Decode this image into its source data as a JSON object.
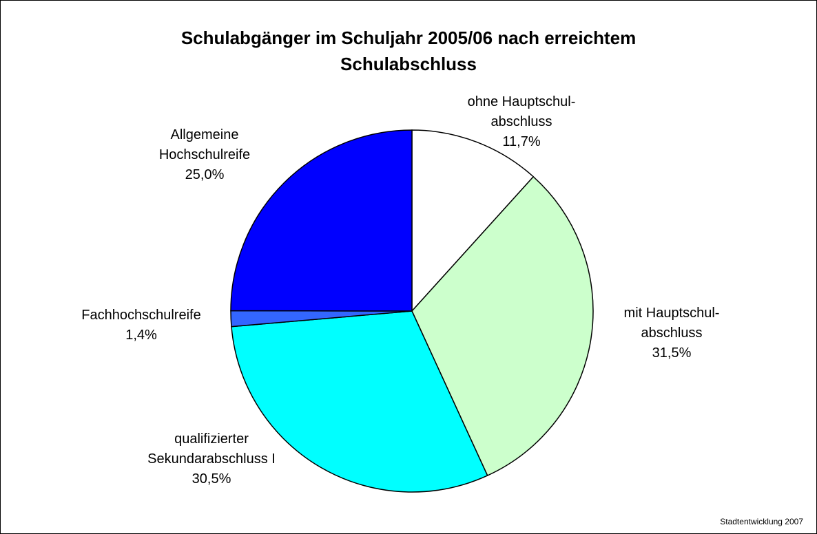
{
  "chart_data": {
    "type": "pie",
    "title": "Schulabgänger im Schuljahr 2005/06 nach erreichtem\nSchulabschluss",
    "categories": [
      "ohne Hauptschul-\nabschluss",
      "mit Hauptschul-\nabschluss",
      "qualifizierter\nSekundarabschluss I",
      "Fachhochschulreife",
      "Allgemeine\nHochschulreife"
    ],
    "values": [
      11.7,
      31.5,
      30.5,
      1.4,
      25.0
    ],
    "value_labels": [
      "11,7%",
      "31,5%",
      "30,5%",
      "1,4%",
      "25,0%"
    ],
    "colors": [
      "#ffffff",
      "#ccffcc",
      "#00ffff",
      "#3366ff",
      "#0000ff"
    ],
    "note": "Stadtentwicklung 2007"
  }
}
